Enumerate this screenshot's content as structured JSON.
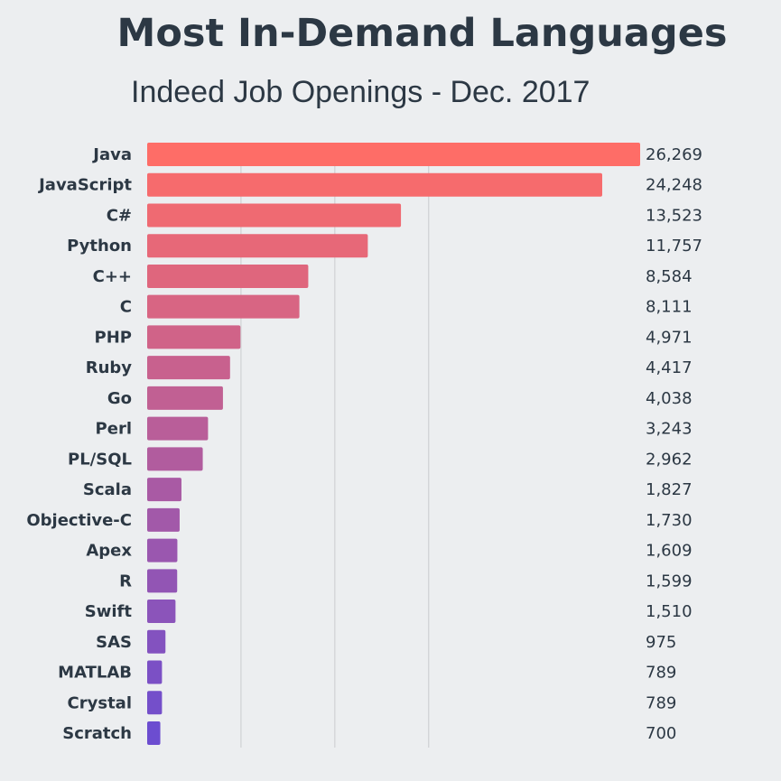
{
  "chart_data": {
    "type": "bar",
    "orientation": "horizontal",
    "title": "Most In-Demand Languages",
    "subtitle": "Indeed Job Openings - Dec. 2017",
    "xlabel": "",
    "ylabel": "",
    "xlim": [
      0,
      26269
    ],
    "grid": true,
    "categories": [
      "Java",
      "JavaScript",
      "C#",
      "Python",
      "C++",
      "C",
      "PHP",
      "Ruby",
      "Go",
      "Perl",
      "PL/SQL",
      "Scala",
      "Objective-C",
      "Apex",
      "R",
      "Swift",
      "SAS",
      "MATLAB",
      "Crystal",
      "Scratch"
    ],
    "values": [
      26269,
      24248,
      13523,
      11757,
      8584,
      8111,
      4971,
      4417,
      4038,
      3243,
      2962,
      1827,
      1730,
      1609,
      1599,
      1510,
      975,
      789,
      789,
      700
    ],
    "value_labels": [
      "26,269",
      "24,248",
      "13,523",
      "11,757",
      "8,584",
      "8,111",
      "4,971",
      "4,417",
      "4,038",
      "3,243",
      "2,962",
      "1,827",
      "1,730",
      "1,609",
      "1,599",
      "1,510",
      "975",
      "789",
      "789",
      "700"
    ],
    "colors": {
      "gradient_start": "#fe6d67",
      "gradient_end": "#6c4dd0",
      "background": "#eceef0",
      "text": "#2c3844",
      "grid": "#c9cbce"
    }
  }
}
